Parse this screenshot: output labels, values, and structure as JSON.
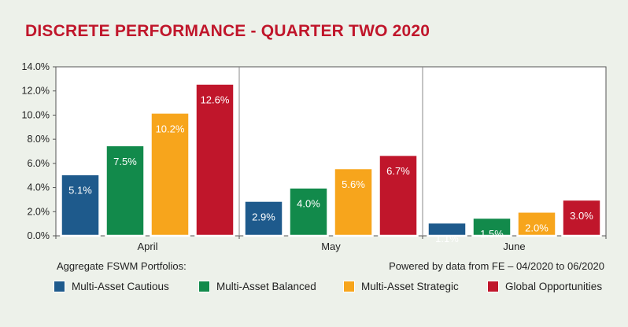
{
  "title": "DISCRETE PERFORMANCE - QUARTER TWO 2020",
  "footer": {
    "left": "Aggregate FSWM Portfolios:",
    "right": "Powered by data from FE – 04/2020 to 06/2020"
  },
  "colors": {
    "background": "#edf1ea",
    "title": "#c0162b",
    "cautious": "#1e5a8c",
    "balanced": "#128a4b",
    "strategic": "#f7a51c",
    "global": "#c0162b"
  },
  "chart_data": {
    "type": "bar",
    "title": "DISCRETE PERFORMANCE - QUARTER TWO 2020",
    "xlabel": "",
    "ylabel": "",
    "categories": [
      "April",
      "May",
      "June"
    ],
    "series": [
      {
        "name": "Multi-Asset Cautious",
        "values": [
          5.1,
          2.9,
          1.1
        ],
        "labels": [
          "5.1%",
          "2.9%",
          "1.1%"
        ],
        "color": "#1e5a8c"
      },
      {
        "name": "Multi-Asset Balanced",
        "values": [
          7.5,
          4.0,
          1.5
        ],
        "labels": [
          "7.5%",
          "4.0%",
          "1.5%"
        ],
        "color": "#128a4b"
      },
      {
        "name": "Multi-Asset Strategic",
        "values": [
          10.2,
          5.6,
          2.0
        ],
        "labels": [
          "10.2%",
          "5.6%",
          "2.0%"
        ],
        "color": "#f7a51c"
      },
      {
        "name": "Global Opportunities",
        "values": [
          12.6,
          6.7,
          3.0
        ],
        "labels": [
          "12.6%",
          "6.7%",
          "3.0%"
        ],
        "color": "#c0162b"
      }
    ],
    "ylim": [
      0,
      14
    ],
    "yticks": [
      0,
      2,
      4,
      6,
      8,
      10,
      12,
      14
    ],
    "ytick_labels": [
      "0.0%",
      "2.0%",
      "4.0%",
      "6.0%",
      "8.0%",
      "10.0%",
      "12.0%",
      "14.0%"
    ],
    "grid": false,
    "legend_position": "bottom"
  }
}
